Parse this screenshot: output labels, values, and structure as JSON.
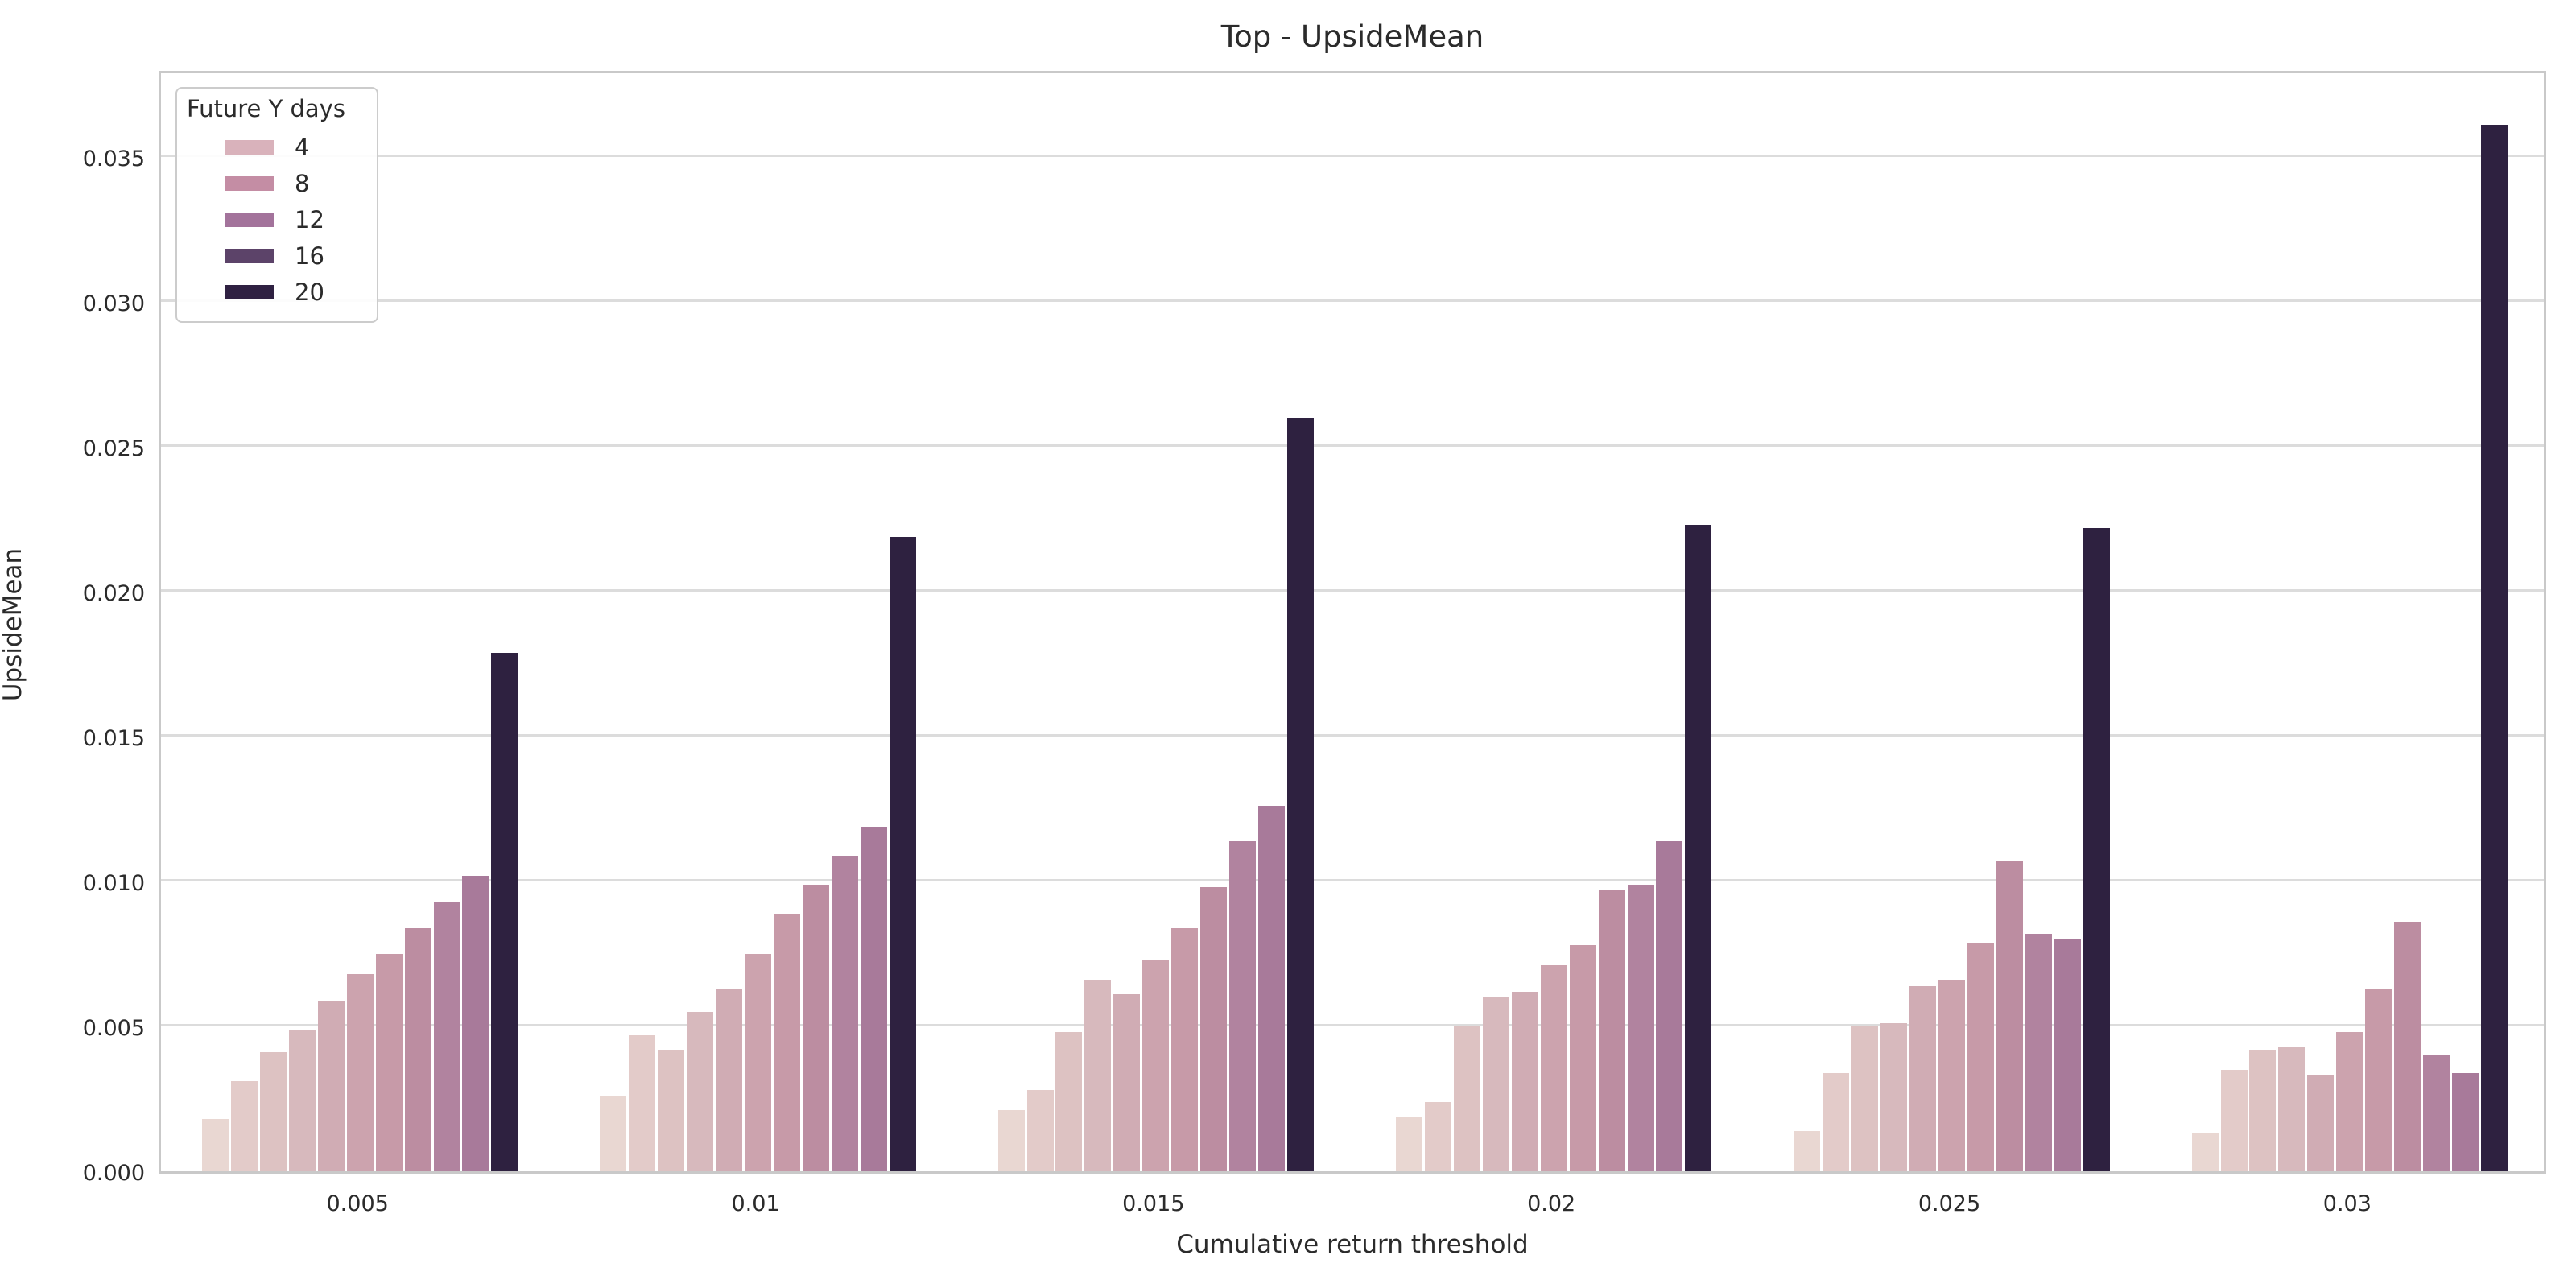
{
  "chart_data": {
    "type": "bar",
    "title": "Top - UpsideMean",
    "xlabel": "Cumulative return threshold",
    "ylabel": "UpsideMean",
    "categories": [
      "0.005",
      "0.01",
      "0.015",
      "0.02",
      "0.025",
      "0.03"
    ],
    "yticks": [
      "0.000",
      "0.005",
      "0.010",
      "0.015",
      "0.020",
      "0.025",
      "0.030",
      "0.035"
    ],
    "ylim": [
      0,
      0.038
    ],
    "grid": true,
    "legend": {
      "title": "Future Y days",
      "position": "upper left",
      "entries": [
        {
          "label": "4",
          "color": "#d9b2bb"
        },
        {
          "label": "8",
          "color": "#c48da4"
        },
        {
          "label": "12",
          "color": "#a3739b"
        },
        {
          "label": "16",
          "color": "#5c4369"
        },
        {
          "label": "20",
          "color": "#2f2142"
        }
      ]
    },
    "bar_colors": [
      "#e9d7d2",
      "#e3cbc9",
      "#ddc2c2",
      "#d7b9bd",
      "#d0acb4",
      "#cca3ae",
      "#c79aa8",
      "#bc8da1",
      "#b1839f",
      "#a87a9a",
      "#2e2140"
    ],
    "groups": [
      {
        "category": "0.005",
        "values": [
          0.0018,
          0.0031,
          0.0041,
          0.0049,
          0.0059,
          0.0068,
          0.0075,
          0.0084,
          0.0093,
          0.0102,
          0.0179
        ]
      },
      {
        "category": "0.01",
        "values": [
          0.0026,
          0.0047,
          0.0042,
          0.0055,
          0.0063,
          0.0075,
          0.0089,
          0.0099,
          0.0109,
          0.0119,
          0.0219
        ]
      },
      {
        "category": "0.015",
        "values": [
          0.0021,
          0.0028,
          0.0048,
          0.0066,
          0.0061,
          0.0073,
          0.0084,
          0.0098,
          0.0114,
          0.0126,
          0.026
        ]
      },
      {
        "category": "0.02",
        "values": [
          0.0019,
          0.0024,
          0.005,
          0.006,
          0.0062,
          0.0071,
          0.0078,
          0.0097,
          0.0099,
          0.0114,
          0.0223
        ]
      },
      {
        "category": "0.025",
        "values": [
          0.0014,
          0.0034,
          0.005,
          0.0051,
          0.0064,
          0.0066,
          0.0079,
          0.0107,
          0.0082,
          0.008,
          0.0222
        ]
      },
      {
        "category": "0.03",
        "values": [
          0.0013,
          0.0035,
          0.0042,
          0.0043,
          0.0033,
          0.0048,
          0.0063,
          0.0086,
          0.004,
          0.0034,
          0.0361
        ]
      }
    ],
    "colors": {
      "grid": "#dcdcdc",
      "spine": "#c9c9c9",
      "text": "#2b2b2b",
      "background": "#ffffff"
    }
  }
}
